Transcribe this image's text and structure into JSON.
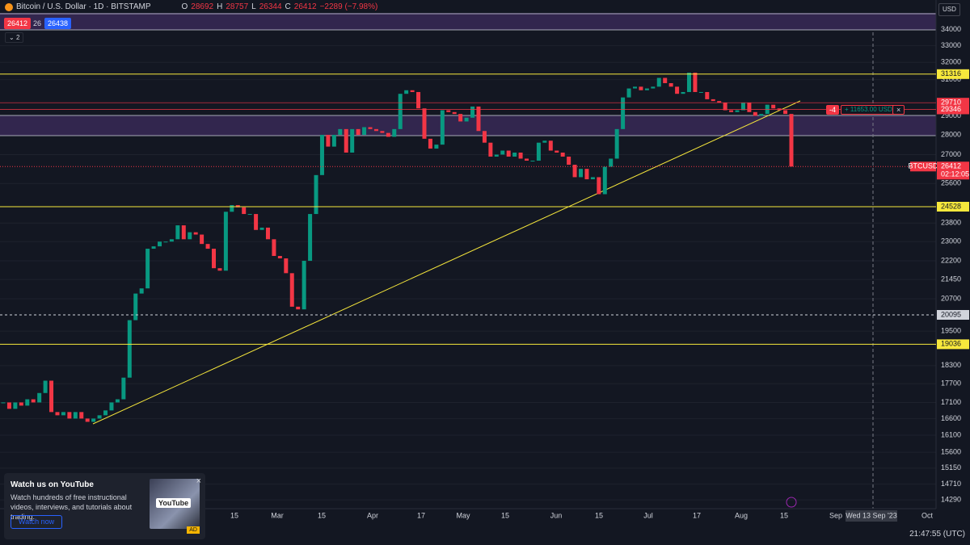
{
  "header": {
    "symbol": "Bitcoin / U.S. Dollar · 1D · BITSTAMP",
    "open_label": "O",
    "open": "28692",
    "high_label": "H",
    "high": "28757",
    "low_label": "L",
    "low": "26344",
    "close_label": "C",
    "close": "26412",
    "change": "−2289 (−7.98%)",
    "sell": "26412",
    "spread": "26",
    "buy": "26438",
    "indicators": "2",
    "currency": "USD"
  },
  "chart": {
    "log_scale": true,
    "ylim": [
      14060,
      35900
    ],
    "yticks": [
      34000,
      33000,
      32000,
      31000,
      29000,
      28000,
      27000,
      25600,
      23800,
      23000,
      22200,
      21450,
      20700,
      19500,
      18300,
      17700,
      17100,
      16600,
      16100,
      15600,
      15150,
      14710,
      14290
    ],
    "time_labels": [
      "15",
      "Mar",
      "15",
      "Apr",
      "17",
      "May",
      "15",
      "Jun",
      "15",
      "Jul",
      "17",
      "Aug",
      "15",
      "Sep",
      "Wed 13 Sep '23",
      "Oct"
    ],
    "close": [
      17100,
      16900,
      17100,
      17000,
      17200,
      17100,
      17400,
      17800,
      16800,
      16700,
      16800,
      16600,
      16800,
      16600,
      16500,
      16600,
      16700,
      16850,
      17100,
      17200,
      17900,
      19900,
      20900,
      21100,
      22700,
      22800,
      23000,
      23000,
      23100,
      23700,
      23100,
      23400,
      23300,
      22900,
      22700,
      21900,
      21800,
      24300,
      24600,
      24500,
      24200,
      24200,
      23500,
      23600,
      23100,
      22400,
      22300,
      21700,
      20400,
      20300,
      22200,
      24200,
      26000,
      28000,
      27400,
      28000,
      28300,
      27100,
      28300,
      28000,
      28400,
      28300,
      28200,
      28100,
      27900,
      28300,
      30200,
      30400,
      30300,
      29400,
      27800,
      27300,
      27500,
      29300,
      29200,
      29100,
      28700,
      28900,
      29500,
      28200,
      27600,
      26900,
      27000,
      27200,
      26900,
      27100,
      26800,
      26700,
      26700,
      27600,
      27700,
      27200,
      27100,
      26900,
      26500,
      25900,
      26300,
      25800,
      25900,
      25100,
      26400,
      26800,
      28300,
      30000,
      30500,
      30600,
      30400,
      30500,
      30600,
      31100,
      30800,
      30600,
      30200,
      30300,
      31400,
      30300,
      30300,
      29900,
      29800,
      29700,
      29300,
      29200,
      29300,
      29700,
      29200,
      29000,
      29100,
      29600,
      29400,
      29300,
      29100,
      26412
    ],
    "levels": [
      {
        "value": 31316,
        "color": "#f7e83c"
      },
      {
        "value": 29710,
        "color": "#f23645"
      },
      {
        "value": 29346,
        "color": "#f23645"
      },
      {
        "value": 24528,
        "color": "#f7e83c"
      },
      {
        "value": 20095,
        "color": "#d1d4dc"
      },
      {
        "value": 19036,
        "color": "#f7e83c"
      }
    ],
    "last_price": {
      "symbol": "BTCUSD",
      "value": 26412,
      "countdown": "02:12:05"
    },
    "position": {
      "qty": "-4",
      "pnl": "+ 11653.00 USD",
      "close": "×"
    }
  },
  "popup": {
    "title": "Watch us on YouTube",
    "body": "Watch hundreds of free instructional videos, interviews, and tutorials about trading.",
    "button": "Watch now",
    "logo": "YouTube",
    "badge": "AD",
    "close": "×"
  },
  "footer": {
    "clock": "21:47:55 (UTC)"
  }
}
